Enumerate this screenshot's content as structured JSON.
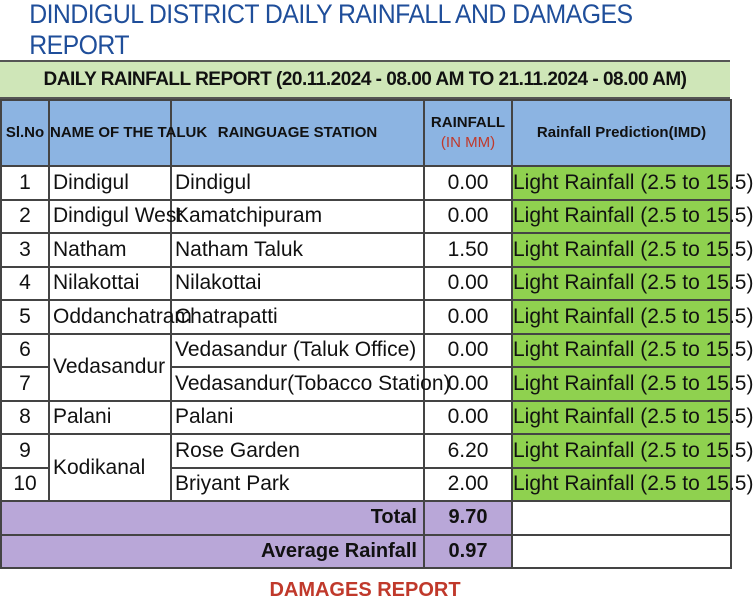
{
  "report": {
    "title": "DINDIGUL DISTRICT  DAILY RAINFALL  AND DAMAGES REPORT",
    "subtitle": "DAILY RAINFALL REPORT (20.11.2024 - 08.00 AM TO 21.11.2024 - 08.00 AM)"
  },
  "table": {
    "headers": {
      "sl": "Sl.No",
      "taluk": "NAME OF THE TALUK",
      "station": "RAINGUAGE STATION",
      "rainfall": "RAINFALL",
      "rainfall_unit": "(IN MM)",
      "prediction": "Rainfall Prediction(IMD)"
    },
    "rows": [
      {
        "sl": "1",
        "taluk": "Dindigul",
        "station": "Dindigul",
        "rainfall": "0.00",
        "prediction": "Light Rainfall (2.5 to 15.5)"
      },
      {
        "sl": "2",
        "taluk": "Dindigul West",
        "station": "Kamatchipuram",
        "rainfall": "0.00",
        "prediction": "Light Rainfall (2.5 to 15.5)"
      },
      {
        "sl": "3",
        "taluk": "Natham",
        "station": "Natham Taluk",
        "rainfall": "1.50",
        "prediction": "Light Rainfall (2.5 to 15.5)"
      },
      {
        "sl": "4",
        "taluk": "Nilakottai",
        "station": "Nilakottai",
        "rainfall": "0.00",
        "prediction": "Light Rainfall (2.5 to 15.5)"
      },
      {
        "sl": "5",
        "taluk": "Oddanchatram",
        "station": "Chatrapatti",
        "rainfall": "0.00",
        "prediction": "Light Rainfall (2.5 to 15.5)"
      },
      {
        "sl": "6",
        "taluk": "Vedasandur",
        "station": "Vedasandur (Taluk Office)",
        "rainfall": "0.00",
        "prediction": "Light Rainfall (2.5 to 15.5)"
      },
      {
        "sl": "7",
        "taluk": "",
        "station": "Vedasandur(Tobacco Station)",
        "rainfall": "0.00",
        "prediction": "Light Rainfall (2.5 to 15.5)"
      },
      {
        "sl": "8",
        "taluk": "Palani",
        "station": "Palani",
        "rainfall": "0.00",
        "prediction": "Light Rainfall (2.5 to 15.5)"
      },
      {
        "sl": "9",
        "taluk": "Kodikanal",
        "station": "Rose Garden",
        "rainfall": "6.20",
        "prediction": "Light Rainfall (2.5 to 15.5)"
      },
      {
        "sl": "10",
        "taluk": "",
        "station": "Briyant Park",
        "rainfall": "2.00",
        "prediction": "Light Rainfall (2.5 to 15.5)"
      }
    ],
    "total_label": "Total",
    "total_value": "9.70",
    "average_label": "Average Rainfall",
    "average_value": "0.97"
  },
  "footer": {
    "next_section": "DAMAGES REPORT"
  }
}
